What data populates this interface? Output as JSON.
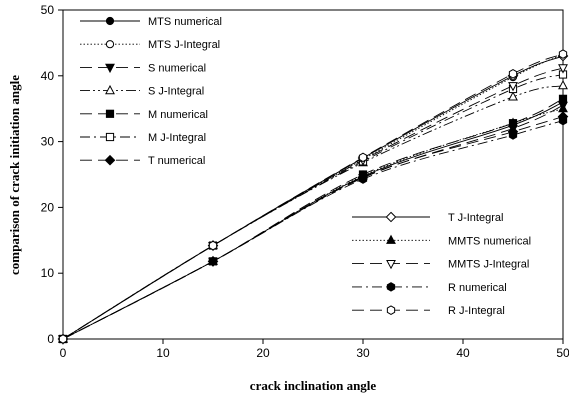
{
  "chart_data": {
    "type": "line",
    "title": "",
    "xlabel": "crack inclination angle",
    "ylabel": "comparison of crack initiation angle",
    "xlim": [
      0,
      50
    ],
    "ylim": [
      0,
      50
    ],
    "x_ticks": [
      0,
      10,
      20,
      30,
      40,
      50
    ],
    "y_ticks": [
      0,
      10,
      20,
      30,
      40,
      50
    ],
    "grid": false,
    "x": [
      0,
      15,
      30,
      45,
      50
    ],
    "series": [
      {
        "name": "MTS numerical",
        "marker": "circle-filled",
        "dash": "solid",
        "values": [
          0,
          11.8,
          24.7,
          32.5,
          36.0
        ]
      },
      {
        "name": "MTS J-Integral",
        "marker": "circle-open",
        "dash": "dotted",
        "values": [
          0,
          14.2,
          27.3,
          39.8,
          43.2
        ]
      },
      {
        "name": "S numerical",
        "marker": "triangle-down-filled",
        "dash": "long-dash",
        "values": [
          0,
          11.8,
          24.5,
          32.0,
          35.5
        ]
      },
      {
        "name": "S J-Integral",
        "marker": "triangle-up-open",
        "dash": "dash-dot-dot",
        "values": [
          0,
          14.2,
          26.8,
          36.8,
          38.5
        ]
      },
      {
        "name": "M numerical",
        "marker": "square-filled",
        "dash": "long-dash",
        "values": [
          0,
          11.8,
          25.0,
          32.8,
          36.5
        ]
      },
      {
        "name": "M J-Integral",
        "marker": "square-open",
        "dash": "dash-dot",
        "values": [
          0,
          14.2,
          27.0,
          38.0,
          40.2
        ]
      },
      {
        "name": "T numerical",
        "marker": "diamond-filled",
        "dash": "long-dash",
        "values": [
          0,
          11.8,
          24.6,
          31.5,
          33.8
        ]
      },
      {
        "name": "T J-Integral",
        "marker": "diamond-open",
        "dash": "solid",
        "values": [
          0,
          14.2,
          27.5,
          40.0,
          43.0
        ]
      },
      {
        "name": "MMTS numerical",
        "marker": "triangle-up-filled",
        "dash": "dotted",
        "values": [
          0,
          11.8,
          24.8,
          32.8,
          35.0
        ]
      },
      {
        "name": "MMTS J-Integral",
        "marker": "triangle-down-open",
        "dash": "long-dash",
        "values": [
          0,
          14.2,
          27.2,
          38.5,
          41.2
        ]
      },
      {
        "name": "R numerical",
        "marker": "hexagon-filled",
        "dash": "dash-dot",
        "values": [
          0,
          11.8,
          24.3,
          31.0,
          33.2
        ]
      },
      {
        "name": "R J-Integral",
        "marker": "hexagon-open",
        "dash": "long-dash",
        "values": [
          0,
          14.2,
          27.6,
          40.3,
          43.3
        ]
      }
    ],
    "legend_groups": [
      {
        "placement": "top-left",
        "series_indices": [
          0,
          1,
          2,
          3,
          4,
          5,
          6
        ]
      },
      {
        "placement": "bottom-right",
        "series_indices": [
          7,
          8,
          9,
          10,
          11
        ]
      }
    ]
  }
}
